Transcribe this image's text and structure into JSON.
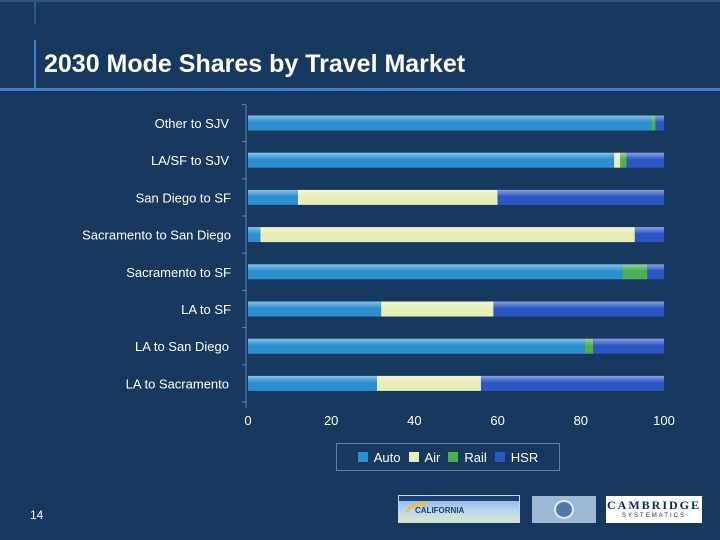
{
  "title": "2030 Mode Shares by Travel Market",
  "page_number": "14",
  "logos": {
    "hsr": "CALIFORNIA",
    "mtc": "MTC",
    "cambridge": "CAMBRIDGE",
    "cambridge_sub": "SYSTEMATICS"
  },
  "colors": {
    "background": "#17395f",
    "Auto": "#2b8fd0",
    "Air": "#e8efb6",
    "Rail": "#4caf50",
    "HSR": "#2b56c4"
  },
  "chart_data": {
    "type": "bar",
    "orientation": "horizontal",
    "stacked": true,
    "categories": [
      "Other to SJV",
      "LA/SF to SJV",
      "San Diego to SF",
      "Sacramento to San Diego",
      "Sacramento to SF",
      "LA to SF",
      "LA to San Diego",
      "LA to Sacramento"
    ],
    "series": [
      {
        "name": "Auto",
        "values": [
          97,
          88,
          12,
          3,
          90,
          32,
          81,
          31
        ]
      },
      {
        "name": "Air",
        "values": [
          0,
          1.5,
          48,
          90,
          0,
          27,
          0,
          25
        ]
      },
      {
        "name": "Rail",
        "values": [
          1,
          1.5,
          0,
          0,
          6,
          0,
          2,
          0
        ]
      },
      {
        "name": "HSR",
        "values": [
          2,
          9,
          40,
          7,
          4,
          41,
          17,
          44
        ]
      }
    ],
    "xticks": [
      "0",
      "20",
      "40",
      "60",
      "80",
      "100"
    ],
    "xlim": [
      0,
      100
    ],
    "legend": "bottom",
    "xlabel": "",
    "ylabel": ""
  }
}
